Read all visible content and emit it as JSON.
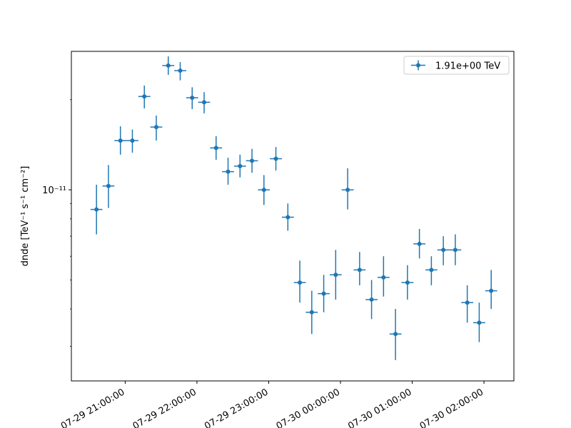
{
  "chart_data": {
    "type": "scatter",
    "ylabel": "dnde [TeV⁻¹ s⁻¹ cm⁻²]",
    "yscale": "log",
    "ylim": [
      2.3e-12,
      2.9e-11
    ],
    "xlim": [
      "2022-07-29 20:15:00",
      "2022-07-30 02:25:00"
    ],
    "xticks": [
      {
        "x": "2022-07-29 21:00:00",
        "label": "07-29 21:00:00"
      },
      {
        "x": "2022-07-29 22:00:00",
        "label": "07-29 22:00:00"
      },
      {
        "x": "2022-07-29 23:00:00",
        "label": "07-29 23:00:00"
      },
      {
        "x": "2022-07-30 00:00:00",
        "label": "07-30 00:00:00"
      },
      {
        "x": "2022-07-30 01:00:00",
        "label": "07-30 01:00:00"
      },
      {
        "x": "2022-07-30 02:00:00",
        "label": "07-30 02:00:00"
      }
    ],
    "yticks": [
      {
        "y": 1e-11,
        "label": "10⁻¹¹"
      }
    ],
    "legend": {
      "position": "upper right",
      "entries": [
        "1.91e+00 TeV"
      ]
    },
    "grid": false,
    "color": "#1f77b4",
    "series": [
      {
        "name": "1.91e+00 TeV",
        "points": [
          {
            "x": "2022-07-29 20:36:00",
            "y": 8.6e-12,
            "y_lo": 7.1e-12,
            "y_hi": 1.04e-11,
            "x_lo": "2022-07-29 20:31:00",
            "x_hi": "2022-07-29 20:41:00"
          },
          {
            "x": "2022-07-29 20:46:00",
            "y": 1.03e-11,
            "y_lo": 8.7e-12,
            "y_hi": 1.21e-11,
            "x_lo": "2022-07-29 20:41:00",
            "x_hi": "2022-07-29 20:51:00"
          },
          {
            "x": "2022-07-29 20:56:00",
            "y": 1.46e-11,
            "y_lo": 1.31e-11,
            "y_hi": 1.63e-11,
            "x_lo": "2022-07-29 20:51:00",
            "x_hi": "2022-07-29 21:01:00"
          },
          {
            "x": "2022-07-29 21:06:00",
            "y": 1.46e-11,
            "y_lo": 1.33e-11,
            "y_hi": 1.59e-11,
            "x_lo": "2022-07-29 21:01:00",
            "x_hi": "2022-07-29 21:11:00"
          },
          {
            "x": "2022-07-29 21:16:00",
            "y": 2.05e-11,
            "y_lo": 1.87e-11,
            "y_hi": 2.23e-11,
            "x_lo": "2022-07-29 21:11:00",
            "x_hi": "2022-07-29 21:21:00"
          },
          {
            "x": "2022-07-29 21:26:00",
            "y": 1.62e-11,
            "y_lo": 1.46e-11,
            "y_hi": 1.77e-11,
            "x_lo": "2022-07-29 21:21:00",
            "x_hi": "2022-07-29 21:31:00"
          },
          {
            "x": "2022-07-29 21:36:00",
            "y": 2.6e-11,
            "y_lo": 2.42e-11,
            "y_hi": 2.79e-11,
            "x_lo": "2022-07-29 21:31:00",
            "x_hi": "2022-07-29 21:41:00"
          },
          {
            "x": "2022-07-29 21:46:00",
            "y": 2.5e-11,
            "y_lo": 2.32e-11,
            "y_hi": 2.67e-11,
            "x_lo": "2022-07-29 21:41:00",
            "x_hi": "2022-07-29 21:51:00"
          },
          {
            "x": "2022-07-29 21:56:00",
            "y": 2.03e-11,
            "y_lo": 1.86e-11,
            "y_hi": 2.2e-11,
            "x_lo": "2022-07-29 21:51:00",
            "x_hi": "2022-07-29 22:01:00"
          },
          {
            "x": "2022-07-29 22:06:00",
            "y": 1.96e-11,
            "y_lo": 1.8e-11,
            "y_hi": 2.12e-11,
            "x_lo": "2022-07-29 22:01:00",
            "x_hi": "2022-07-29 22:11:00"
          },
          {
            "x": "2022-07-29 22:16:00",
            "y": 1.38e-11,
            "y_lo": 1.26e-11,
            "y_hi": 1.51e-11,
            "x_lo": "2022-07-29 22:11:00",
            "x_hi": "2022-07-29 22:21:00"
          },
          {
            "x": "2022-07-29 22:26:00",
            "y": 1.15e-11,
            "y_lo": 1.04e-11,
            "y_hi": 1.28e-11,
            "x_lo": "2022-07-29 22:21:00",
            "x_hi": "2022-07-29 22:31:00"
          },
          {
            "x": "2022-07-29 22:36:00",
            "y": 1.2e-11,
            "y_lo": 1.1e-11,
            "y_hi": 1.31e-11,
            "x_lo": "2022-07-29 22:31:00",
            "x_hi": "2022-07-29 22:41:00"
          },
          {
            "x": "2022-07-29 22:46:00",
            "y": 1.25e-11,
            "y_lo": 1.14e-11,
            "y_hi": 1.37e-11,
            "x_lo": "2022-07-29 22:41:00",
            "x_hi": "2022-07-29 22:51:00"
          },
          {
            "x": "2022-07-29 22:56:00",
            "y": 1e-11,
            "y_lo": 8.9e-12,
            "y_hi": 1.12e-11,
            "x_lo": "2022-07-29 22:51:00",
            "x_hi": "2022-07-29 23:01:00"
          },
          {
            "x": "2022-07-29 23:06:00",
            "y": 1.27e-11,
            "y_lo": 1.16e-11,
            "y_hi": 1.39e-11,
            "x_lo": "2022-07-29 23:01:00",
            "x_hi": "2022-07-29 23:11:00"
          },
          {
            "x": "2022-07-29 23:16:00",
            "y": 8.1e-12,
            "y_lo": 7.3e-12,
            "y_hi": 9e-12,
            "x_lo": "2022-07-29 23:11:00",
            "x_hi": "2022-07-29 23:21:00"
          },
          {
            "x": "2022-07-29 23:26:00",
            "y": 4.9e-12,
            "y_lo": 4.2e-12,
            "y_hi": 5.8e-12,
            "x_lo": "2022-07-29 23:21:00",
            "x_hi": "2022-07-29 23:31:00"
          },
          {
            "x": "2022-07-29 23:36:00",
            "y": 3.9e-12,
            "y_lo": 3.3e-12,
            "y_hi": 4.6e-12,
            "x_lo": "2022-07-29 23:31:00",
            "x_hi": "2022-07-29 23:41:00"
          },
          {
            "x": "2022-07-29 23:46:00",
            "y": 4.5e-12,
            "y_lo": 3.9e-12,
            "y_hi": 5.2e-12,
            "x_lo": "2022-07-29 23:41:00",
            "x_hi": "2022-07-29 23:51:00"
          },
          {
            "x": "2022-07-29 23:56:00",
            "y": 5.2e-12,
            "y_lo": 4.3e-12,
            "y_hi": 6.3e-12,
            "x_lo": "2022-07-29 23:51:00",
            "x_hi": "2022-07-30 00:01:00"
          },
          {
            "x": "2022-07-30 00:06:00",
            "y": 1e-11,
            "y_lo": 8.6e-12,
            "y_hi": 1.18e-11,
            "x_lo": "2022-07-30 00:01:00",
            "x_hi": "2022-07-30 00:11:00"
          },
          {
            "x": "2022-07-30 00:16:00",
            "y": 5.4e-12,
            "y_lo": 4.8e-12,
            "y_hi": 6.2e-12,
            "x_lo": "2022-07-30 00:11:00",
            "x_hi": "2022-07-30 00:21:00"
          },
          {
            "x": "2022-07-30 00:26:00",
            "y": 4.3e-12,
            "y_lo": 3.7e-12,
            "y_hi": 5e-12,
            "x_lo": "2022-07-30 00:21:00",
            "x_hi": "2022-07-30 00:31:00"
          },
          {
            "x": "2022-07-30 00:36:00",
            "y": 5.1e-12,
            "y_lo": 4.4e-12,
            "y_hi": 6e-12,
            "x_lo": "2022-07-30 00:31:00",
            "x_hi": "2022-07-30 00:41:00"
          },
          {
            "x": "2022-07-30 00:46:00",
            "y": 3.3e-12,
            "y_lo": 2.7e-12,
            "y_hi": 4e-12,
            "x_lo": "2022-07-30 00:41:00",
            "x_hi": "2022-07-30 00:51:00"
          },
          {
            "x": "2022-07-30 00:56:00",
            "y": 4.9e-12,
            "y_lo": 4.3e-12,
            "y_hi": 5.6e-12,
            "x_lo": "2022-07-30 00:51:00",
            "x_hi": "2022-07-30 01:01:00"
          },
          {
            "x": "2022-07-30 01:06:00",
            "y": 6.6e-12,
            "y_lo": 5.9e-12,
            "y_hi": 7.4e-12,
            "x_lo": "2022-07-30 01:01:00",
            "x_hi": "2022-07-30 01:11:00"
          },
          {
            "x": "2022-07-30 01:16:00",
            "y": 5.4e-12,
            "y_lo": 4.8e-12,
            "y_hi": 6e-12,
            "x_lo": "2022-07-30 01:11:00",
            "x_hi": "2022-07-30 01:21:00"
          },
          {
            "x": "2022-07-30 01:26:00",
            "y": 6.3e-12,
            "y_lo": 5.6e-12,
            "y_hi": 7e-12,
            "x_lo": "2022-07-30 01:21:00",
            "x_hi": "2022-07-30 01:31:00"
          },
          {
            "x": "2022-07-30 01:36:00",
            "y": 6.3e-12,
            "y_lo": 5.6e-12,
            "y_hi": 7.1e-12,
            "x_lo": "2022-07-30 01:31:00",
            "x_hi": "2022-07-30 01:41:00"
          },
          {
            "x": "2022-07-30 01:46:00",
            "y": 4.2e-12,
            "y_lo": 3.6e-12,
            "y_hi": 4.8e-12,
            "x_lo": "2022-07-30 01:41:00",
            "x_hi": "2022-07-30 01:51:00"
          },
          {
            "x": "2022-07-30 01:56:00",
            "y": 3.6e-12,
            "y_lo": 3.1e-12,
            "y_hi": 4.2e-12,
            "x_lo": "2022-07-30 01:51:00",
            "x_hi": "2022-07-30 02:01:00"
          },
          {
            "x": "2022-07-30 02:06:00",
            "y": 4.6e-12,
            "y_lo": 4e-12,
            "y_hi": 5.4e-12,
            "x_lo": "2022-07-30 02:01:00",
            "x_hi": "2022-07-30 02:11:00"
          }
        ]
      }
    ]
  }
}
